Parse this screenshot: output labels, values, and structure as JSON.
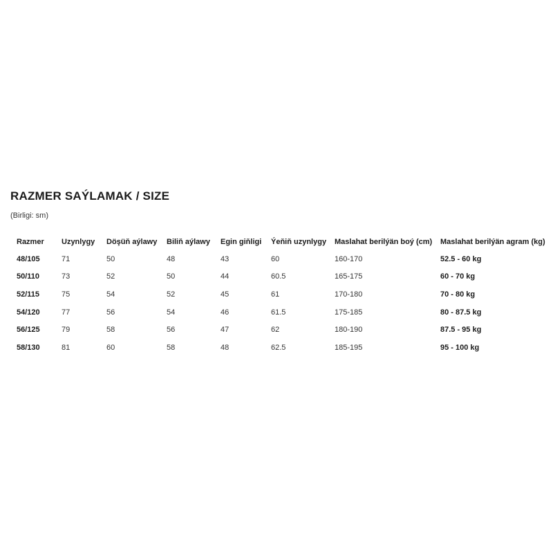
{
  "title": "RAZMER SAÝLAMAK / SIZE",
  "unit_note": "(Birligi: sm)",
  "table": {
    "headers": [
      "Razmer",
      "Uzynlygy",
      "Döşüň aýlawy",
      "Biliň aýlawy",
      "Egin giňligi",
      "Ýeňiň uzynlygy",
      "Maslahat berilýän boý (cm)",
      "Maslahat berilýän agram (kg)"
    ],
    "rows": [
      [
        "48/105",
        "71",
        "50",
        "48",
        "43",
        "60",
        "160-170",
        "52.5 - 60 kg"
      ],
      [
        "50/110",
        "73",
        "52",
        "50",
        "44",
        "60.5",
        "165-175",
        "60 - 70 kg"
      ],
      [
        "52/115",
        "75",
        "54",
        "52",
        "45",
        "61",
        "170-180",
        "70 - 80 kg"
      ],
      [
        "54/120",
        "77",
        "56",
        "54",
        "46",
        "61.5",
        "175-185",
        "80 - 87.5 kg"
      ],
      [
        "56/125",
        "79",
        "58",
        "56",
        "47",
        "62",
        "180-190",
        "87.5 - 95 kg"
      ],
      [
        "58/130",
        "81",
        "60",
        "58",
        "48",
        "62.5",
        "185-195",
        "95 - 100 kg"
      ]
    ]
  }
}
